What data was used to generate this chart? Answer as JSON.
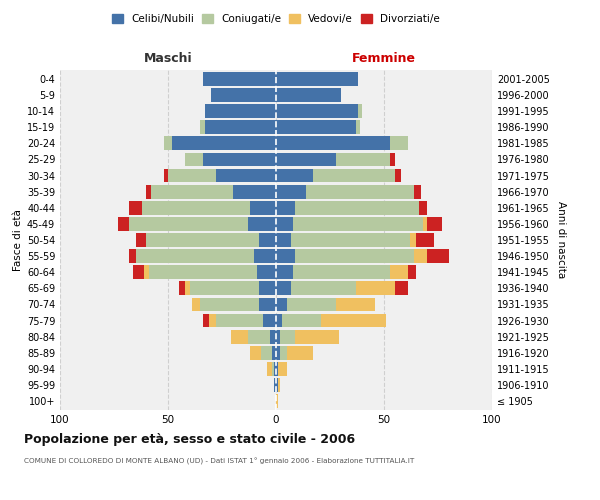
{
  "age_groups": [
    "100+",
    "95-99",
    "90-94",
    "85-89",
    "80-84",
    "75-79",
    "70-74",
    "65-69",
    "60-64",
    "55-59",
    "50-54",
    "45-49",
    "40-44",
    "35-39",
    "30-34",
    "25-29",
    "20-24",
    "15-19",
    "10-14",
    "5-9",
    "0-4"
  ],
  "birth_years": [
    "≤ 1905",
    "1906-1910",
    "1911-1915",
    "1916-1920",
    "1921-1925",
    "1926-1930",
    "1931-1935",
    "1936-1940",
    "1941-1945",
    "1946-1950",
    "1951-1955",
    "1956-1960",
    "1961-1965",
    "1966-1970",
    "1971-1975",
    "1976-1980",
    "1981-1985",
    "1986-1990",
    "1991-1995",
    "1996-2000",
    "2001-2005"
  ],
  "colors": {
    "celibi": "#4472a8",
    "coniugati": "#b5c9a0",
    "vedovi": "#f0c060",
    "divorziati": "#cc2222"
  },
  "males": {
    "celibi": [
      0,
      1,
      1,
      2,
      3,
      6,
      8,
      8,
      9,
      10,
      8,
      13,
      12,
      20,
      28,
      34,
      48,
      33,
      33,
      30,
      34
    ],
    "coniugati": [
      0,
      0,
      1,
      5,
      10,
      22,
      27,
      32,
      50,
      55,
      52,
      55,
      50,
      38,
      22,
      8,
      4,
      2,
      0,
      0,
      0
    ],
    "vedovi": [
      0,
      0,
      2,
      5,
      8,
      3,
      4,
      2,
      2,
      0,
      0,
      0,
      0,
      0,
      0,
      0,
      0,
      0,
      0,
      0,
      0
    ],
    "divorziati": [
      0,
      0,
      0,
      0,
      0,
      3,
      0,
      3,
      5,
      3,
      5,
      5,
      6,
      2,
      2,
      0,
      0,
      0,
      0,
      0,
      0
    ]
  },
  "females": {
    "nubili": [
      0,
      1,
      1,
      2,
      2,
      3,
      5,
      7,
      8,
      9,
      7,
      8,
      9,
      14,
      17,
      28,
      53,
      37,
      38,
      30,
      38
    ],
    "coniugati": [
      0,
      0,
      0,
      3,
      7,
      18,
      23,
      30,
      45,
      55,
      55,
      60,
      57,
      50,
      38,
      25,
      8,
      2,
      2,
      0,
      0
    ],
    "vedovi": [
      1,
      1,
      4,
      12,
      20,
      30,
      18,
      18,
      8,
      6,
      3,
      2,
      0,
      0,
      0,
      0,
      0,
      0,
      0,
      0,
      0
    ],
    "divorziati": [
      0,
      0,
      0,
      0,
      0,
      0,
      0,
      6,
      4,
      10,
      8,
      7,
      4,
      3,
      3,
      2,
      0,
      0,
      0,
      0,
      0
    ]
  },
  "title": "Popolazione per età, sesso e stato civile - 2006",
  "subtitle": "COMUNE DI COLLOREDO DI MONTE ALBANO (UD) - Dati ISTAT 1° gennaio 2006 - Elaborazione TUTTITALIA.IT",
  "xlabel_left": "Maschi",
  "xlabel_right": "Femmine",
  "ylabel_left": "Fasce di età",
  "ylabel_right": "Anni di nascita",
  "xlim": 100,
  "bg_color": "#f0f0f0",
  "bar_height": 0.85,
  "legend_labels": [
    "Celibi/Nubili",
    "Coniugati/e",
    "Vedovi/e",
    "Divorziati/e"
  ]
}
